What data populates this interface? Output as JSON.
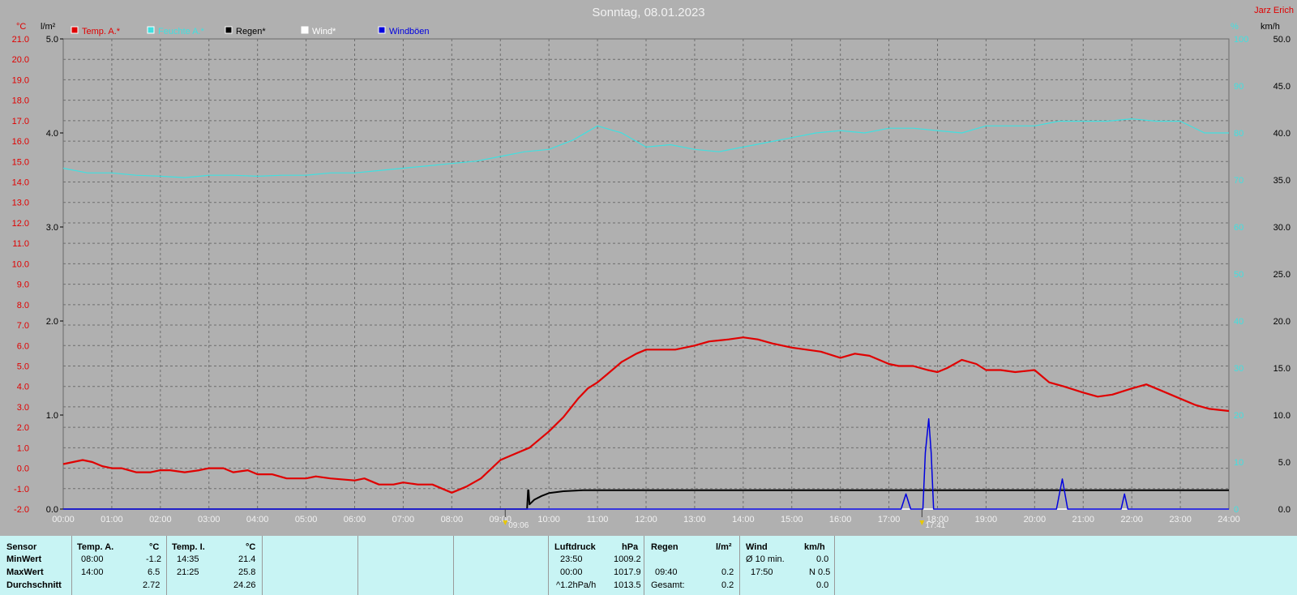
{
  "chart_data": {
    "type": "line",
    "title": "Sonntag, 08.01.2023",
    "author": "Jarz Erich",
    "xlabel": "",
    "x_ticks": [
      "00:00",
      "01:00",
      "02:00",
      "03:00",
      "04:00",
      "05:00",
      "06:00",
      "07:00",
      "08:00",
      "09:00",
      "10:00",
      "11:00",
      "12:00",
      "13:00",
      "14:00",
      "15:00",
      "16:00",
      "17:00",
      "18:00",
      "19:00",
      "20:00",
      "21:00",
      "22:00",
      "23:00",
      "24:00"
    ],
    "xlim": [
      0,
      24
    ],
    "grid": true,
    "legend_position": "top-left",
    "axes": {
      "temp": {
        "unit": "°C",
        "range": [
          -2.0,
          21.0
        ],
        "color": "#e00000",
        "ticks": [
          "-2.0",
          "-1.0",
          "0.0",
          "1.0",
          "2.0",
          "3.0",
          "4.0",
          "5.0",
          "6.0",
          "7.0",
          "8.0",
          "9.0",
          "10.0",
          "11.0",
          "12.0",
          "13.0",
          "14.0",
          "15.0",
          "16.0",
          "17.0",
          "18.0",
          "19.0",
          "20.0",
          "21.0"
        ]
      },
      "rain": {
        "unit": "l/m²",
        "range": [
          0,
          5
        ],
        "color": "#000000",
        "ticks": [
          "0.0",
          "1.0",
          "2.0",
          "3.0",
          "4.0",
          "5.0"
        ]
      },
      "humidity": {
        "unit": "%",
        "range": [
          0,
          100
        ],
        "color": "#40e0e0",
        "ticks": [
          "0",
          "10",
          "20",
          "30",
          "40",
          "50",
          "60",
          "70",
          "80",
          "90",
          "100"
        ]
      },
      "wind": {
        "unit": "km/h",
        "range": [
          0,
          50
        ],
        "color": "#000000",
        "ticks": [
          "0.0",
          "5.0",
          "10.0",
          "15.0",
          "20.0",
          "25.0",
          "30.0",
          "35.0",
          "40.0",
          "45.0",
          "50.0"
        ]
      }
    },
    "markers": [
      {
        "label": "09:06",
        "x": 9.1
      },
      {
        "label": "17:41",
        "x": 17.68
      }
    ],
    "series": [
      {
        "name": "Temp. A.*",
        "color": "#e00000",
        "axis": "temp",
        "x": [
          0,
          0.2,
          0.4,
          0.6,
          0.8,
          1.0,
          1.2,
          1.5,
          1.8,
          2.0,
          2.2,
          2.5,
          2.8,
          3.0,
          3.3,
          3.5,
          3.8,
          4.0,
          4.3,
          4.6,
          5.0,
          5.2,
          5.5,
          6.0,
          6.2,
          6.5,
          6.8,
          7.0,
          7.3,
          7.6,
          8.0,
          8.3,
          8.6,
          9.0,
          9.3,
          9.6,
          10.0,
          10.3,
          10.6,
          10.8,
          11.0,
          11.2,
          11.5,
          11.8,
          12.0,
          12.3,
          12.6,
          13.0,
          13.3,
          13.7,
          14.0,
          14.3,
          14.6,
          15.0,
          15.3,
          15.6,
          16.0,
          16.3,
          16.6,
          17.0,
          17.2,
          17.5,
          17.8,
          18.0,
          18.2,
          18.5,
          18.8,
          19.0,
          19.3,
          19.6,
          20.0,
          20.3,
          20.6,
          21.0,
          21.3,
          21.6,
          22.0,
          22.3,
          22.6,
          23.0,
          23.3,
          23.6,
          24.0
        ],
        "y": [
          0.2,
          0.3,
          0.4,
          0.3,
          0.1,
          0.0,
          0.0,
          -0.2,
          -0.2,
          -0.1,
          -0.1,
          -0.2,
          -0.1,
          0.0,
          0.0,
          -0.2,
          -0.1,
          -0.3,
          -0.3,
          -0.5,
          -0.5,
          -0.4,
          -0.5,
          -0.6,
          -0.5,
          -0.8,
          -0.8,
          -0.7,
          -0.8,
          -0.8,
          -1.2,
          -0.9,
          -0.5,
          0.4,
          0.7,
          1.0,
          1.8,
          2.5,
          3.4,
          3.9,
          4.2,
          4.6,
          5.2,
          5.6,
          5.8,
          5.8,
          5.8,
          6.0,
          6.2,
          6.3,
          6.4,
          6.3,
          6.1,
          5.9,
          5.8,
          5.7,
          5.4,
          5.6,
          5.5,
          5.1,
          5.0,
          5.0,
          4.8,
          4.7,
          4.9,
          5.3,
          5.1,
          4.8,
          4.8,
          4.7,
          4.8,
          4.2,
          4.0,
          3.7,
          3.5,
          3.6,
          3.9,
          4.1,
          3.8,
          3.4,
          3.1,
          2.9,
          2.8
        ]
      },
      {
        "name": "Feuchte A.*",
        "color": "#40e0e0",
        "axis": "humidity",
        "x": [
          0,
          0.5,
          1.0,
          1.5,
          2.0,
          2.5,
          3.0,
          3.5,
          4.0,
          4.5,
          5.0,
          5.5,
          6.0,
          6.5,
          7.0,
          7.5,
          8.0,
          8.5,
          9.0,
          9.5,
          10.0,
          10.5,
          11.0,
          11.5,
          12.0,
          12.5,
          13.0,
          13.5,
          14.0,
          14.5,
          15.0,
          15.5,
          16.0,
          16.5,
          17.0,
          17.5,
          18.0,
          18.5,
          19.0,
          19.5,
          20.0,
          20.5,
          21.0,
          21.5,
          22.0,
          22.5,
          23.0,
          23.5,
          24.0
        ],
        "y": [
          72.5,
          71.5,
          71.5,
          71.0,
          70.8,
          70.5,
          71.0,
          71.0,
          70.8,
          71.0,
          71.0,
          71.5,
          71.5,
          72.0,
          72.5,
          73.0,
          73.5,
          74.0,
          75.0,
          76.0,
          76.5,
          78.5,
          81.5,
          80.0,
          77.0,
          77.5,
          76.5,
          76.0,
          77.0,
          78.0,
          79.0,
          80.0,
          80.5,
          80.0,
          81.0,
          81.0,
          80.5,
          80.0,
          81.5,
          81.5,
          81.5,
          82.5,
          82.5,
          82.5,
          83.0,
          82.5,
          82.5,
          80.0,
          80.0
        ]
      },
      {
        "name": "Regen*",
        "color": "#000000",
        "axis": "rain",
        "x": [
          0,
          9.55,
          9.57,
          9.58,
          9.6,
          9.7,
          9.85,
          10.0,
          10.3,
          10.7,
          11.0,
          24.0
        ],
        "y": [
          0,
          0,
          0.2,
          0.2,
          0.05,
          0.1,
          0.14,
          0.17,
          0.19,
          0.2,
          0.2,
          0.2
        ]
      },
      {
        "name": "Wind*",
        "color": "#ffffff",
        "axis": "wind",
        "x": [
          0,
          24
        ],
        "y": [
          0,
          0
        ]
      },
      {
        "name": "Windböen",
        "color": "#0000e0",
        "axis": "wind",
        "x": [
          0,
          17.25,
          17.35,
          17.45,
          17.7,
          17.75,
          17.82,
          17.87,
          17.92,
          20.45,
          20.57,
          20.68,
          21.78,
          21.85,
          21.92,
          24.0
        ],
        "y": [
          0,
          0,
          1.6,
          0,
          0,
          6.0,
          9.6,
          6.0,
          0,
          0,
          3.2,
          0,
          0,
          1.6,
          0,
          0
        ]
      }
    ]
  },
  "table": {
    "sensor_label": "Sensor",
    "min_label": "MinWert",
    "max_label": "MaxWert",
    "avg_label": "Durchschnitt",
    "temp_a": {
      "title": "Temp. A.",
      "unit": "°C",
      "min_time": "08:00",
      "min_val": "-1.2",
      "max_time": "14:00",
      "max_val": "6.5",
      "avg": "2.72"
    },
    "temp_i": {
      "title": "Temp. I.",
      "unit": "°C",
      "min_time": "14:35",
      "min_val": "21.4",
      "max_time": "21:25",
      "max_val": "25.8",
      "avg": "24.26"
    },
    "pressure": {
      "title": "Luftdruck",
      "unit": "hPa",
      "r1_time": "23:50",
      "r1_val": "1009.2",
      "r2_time": "00:00",
      "r2_val": "1017.9",
      "r3_time": "^1.2hPa/h",
      "r3_val": "1013.5"
    },
    "rain": {
      "title": "Regen",
      "unit": "l/m²",
      "r2_time": "09:40",
      "r2_val": "0.2",
      "r3_label": "Gesamt:",
      "r3_val": "0.2"
    },
    "wind": {
      "title": "Wind",
      "unit": "km/h",
      "r1_label": "Ø 10 min.",
      "r1_val": "0.0",
      "r2_time": "17:50",
      "r2_val": "N 0.5",
      "r3_val": "0.0"
    }
  }
}
